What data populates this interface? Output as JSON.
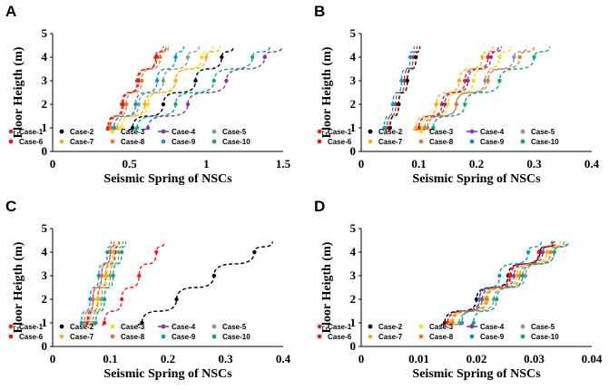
{
  "colors": {
    "Case-1": "#c0392b",
    "Case-2": "#000000",
    "Case-3": "#e8e020",
    "Case-4": "#7b3fa0",
    "Case-5": "#8a9a8a",
    "Case-6": "#e02020",
    "Case-7": "#f0b030",
    "Case-8": "#e07a3a",
    "Case-9": "#1a90c8",
    "Case-10": "#1aa080"
  },
  "chart_data": [
    {
      "panel": "A",
      "type": "scatter",
      "xlabel": "Seismic Spring of NSCs",
      "ylabel": "Floor Heigth (m)",
      "xlim": [
        0,
        1.5
      ],
      "ylim": [
        0,
        5
      ],
      "xticks": [
        "0",
        "0.5",
        "1",
        "1.5"
      ],
      "yticks": [
        "0",
        "1",
        "2",
        "3",
        "4",
        "5"
      ],
      "legend": [
        "Case-1",
        "Case-2",
        "Case-3",
        "Case-4",
        "Case-5",
        "Case-6",
        "Case-7",
        "Case-8",
        "Case-9",
        "Case-10"
      ],
      "y": [
        1,
        2,
        3,
        4
      ],
      "series": [
        {
          "name": "Case-1",
          "x": [
            0.36,
            0.45,
            0.55,
            0.68
          ]
        },
        {
          "name": "Case-2",
          "x": [
            0.52,
            0.72,
            0.93,
            1.1
          ]
        },
        {
          "name": "Case-3",
          "x": [
            0.45,
            0.62,
            0.8,
            0.97
          ]
        },
        {
          "name": "Case-4",
          "x": [
            0.62,
            0.88,
            1.13,
            1.38
          ]
        },
        {
          "name": "Case-5",
          "x": [
            0.4,
            0.56,
            0.72,
            0.88
          ]
        },
        {
          "name": "Case-6",
          "x": [
            0.37,
            0.46,
            0.56,
            0.67
          ]
        },
        {
          "name": "Case-7",
          "x": [
            0.42,
            0.6,
            0.8,
            1.0
          ]
        },
        {
          "name": "Case-8",
          "x": [
            0.38,
            0.48,
            0.58,
            0.7
          ]
        },
        {
          "name": "Case-9",
          "x": [
            0.4,
            0.54,
            0.68,
            0.8
          ]
        },
        {
          "name": "Case-10",
          "x": [
            0.55,
            0.8,
            1.05,
            1.3
          ]
        }
      ]
    },
    {
      "panel": "B",
      "type": "scatter",
      "xlabel": "Seismic Spring of NSCs",
      "ylabel": "Floor Heigth (m)",
      "xlim": [
        0,
        0.4
      ],
      "ylim": [
        0,
        5
      ],
      "xticks": [
        "0",
        "0.1",
        "0.2",
        "0.3",
        "0.4"
      ],
      "yticks": [
        "0",
        "1",
        "2",
        "3",
        "4",
        "5"
      ],
      "legend": [
        "Case-1",
        "Case-2",
        "Case-3",
        "Case-4",
        "Case-5",
        "Case-6",
        "Case-7",
        "Case-8",
        "Case-9",
        "Case-10"
      ],
      "y": [
        1,
        2,
        3,
        4
      ],
      "series": [
        {
          "name": "Case-1",
          "x": [
            0.045,
            0.06,
            0.075,
            0.09
          ]
        },
        {
          "name": "Case-2",
          "x": [
            0.05,
            0.065,
            0.08,
            0.095
          ]
        },
        {
          "name": "Case-3",
          "x": [
            0.105,
            0.15,
            0.195,
            0.24
          ]
        },
        {
          "name": "Case-4",
          "x": [
            0.1,
            0.145,
            0.185,
            0.225
          ]
        },
        {
          "name": "Case-5",
          "x": [
            0.11,
            0.165,
            0.215,
            0.265
          ]
        },
        {
          "name": "Case-6",
          "x": [
            0.1,
            0.14,
            0.18,
            0.22
          ]
        },
        {
          "name": "Case-7",
          "x": [
            0.095,
            0.13,
            0.17,
            0.21
          ]
        },
        {
          "name": "Case-8",
          "x": [
            0.115,
            0.165,
            0.22,
            0.275
          ]
        },
        {
          "name": "Case-9",
          "x": [
            0.04,
            0.055,
            0.07,
            0.085
          ]
        },
        {
          "name": "Case-10",
          "x": [
            0.125,
            0.18,
            0.24,
            0.3
          ]
        }
      ]
    },
    {
      "panel": "C",
      "type": "scatter",
      "xlabel": "Seismic Spring of NSCs",
      "ylabel": "Floor Heigth (m)",
      "xlim": [
        0,
        0.4
      ],
      "ylim": [
        0,
        5
      ],
      "xticks": [
        "0",
        "0.1",
        "0.2",
        "0.3",
        "0.4"
      ],
      "yticks": [
        "0",
        "1",
        "2",
        "3",
        "4",
        "5"
      ],
      "legend": [
        "Case-1",
        "Case-2",
        "Case-3",
        "Case-4",
        "Case-5",
        "Case-6",
        "Case-7",
        "Case-8",
        "Case-9",
        "Case-10"
      ],
      "y": [
        1,
        2,
        3,
        4
      ],
      "series": [
        {
          "name": "Case-1",
          "x": [
            0.06,
            0.07,
            0.085,
            0.1
          ]
        },
        {
          "name": "Case-2",
          "x": [
            0.155,
            0.215,
            0.28,
            0.35
          ]
        },
        {
          "name": "Case-3",
          "x": [
            0.065,
            0.08,
            0.095,
            0.11
          ]
        },
        {
          "name": "Case-4",
          "x": [
            0.062,
            0.078,
            0.092,
            0.108
          ]
        },
        {
          "name": "Case-5",
          "x": [
            0.07,
            0.085,
            0.1,
            0.115
          ]
        },
        {
          "name": "Case-6",
          "x": [
            0.09,
            0.12,
            0.15,
            0.18
          ]
        },
        {
          "name": "Case-7",
          "x": [
            0.065,
            0.078,
            0.092,
            0.105
          ]
        },
        {
          "name": "Case-8",
          "x": [
            0.055,
            0.07,
            0.085,
            0.1
          ]
        },
        {
          "name": "Case-9",
          "x": [
            0.05,
            0.065,
            0.08,
            0.095
          ]
        },
        {
          "name": "Case-10",
          "x": [
            0.075,
            0.09,
            0.105,
            0.12
          ]
        }
      ]
    },
    {
      "panel": "D",
      "type": "scatter",
      "xlabel": "Seismic Spring of NSCs",
      "ylabel": "Floor Heigth (m)",
      "xlim": [
        0,
        0.04
      ],
      "ylim": [
        0,
        5
      ],
      "xticks": [
        "0",
        "0.01",
        "0.02",
        "0.03",
        "0.04"
      ],
      "yticks": [
        "0",
        "1",
        "2",
        "3",
        "4",
        "5"
      ],
      "legend": [
        "Case-1",
        "Case-2",
        "Case-3",
        "Case-4",
        "Case-5",
        "Case-6",
        "Case-7",
        "Case-8",
        "Case-9",
        "Case-10"
      ],
      "y": [
        1,
        2,
        3,
        4
      ],
      "series": [
        {
          "name": "Case-1",
          "x": [
            0.015,
            0.0205,
            0.026,
            0.031
          ]
        },
        {
          "name": "Case-2",
          "x": [
            0.0145,
            0.02,
            0.0255,
            0.031
          ]
        },
        {
          "name": "Case-3",
          "x": [
            0.016,
            0.022,
            0.028,
            0.033
          ]
        },
        {
          "name": "Case-4",
          "x": [
            0.015,
            0.021,
            0.0265,
            0.0315
          ]
        },
        {
          "name": "Case-5",
          "x": [
            0.017,
            0.023,
            0.0285,
            0.0335
          ]
        },
        {
          "name": "Case-6",
          "x": [
            0.015,
            0.0205,
            0.0258,
            0.0308
          ]
        },
        {
          "name": "Case-7",
          "x": [
            0.0155,
            0.0215,
            0.027,
            0.0322
          ]
        },
        {
          "name": "Case-8",
          "x": [
            0.0158,
            0.0218,
            0.0275,
            0.0328
          ]
        },
        {
          "name": "Case-9",
          "x": [
            0.0175,
            0.0205,
            0.024,
            0.029
          ]
        },
        {
          "name": "Case-10",
          "x": [
            0.0195,
            0.0235,
            0.028,
            0.0335
          ]
        }
      ]
    }
  ]
}
